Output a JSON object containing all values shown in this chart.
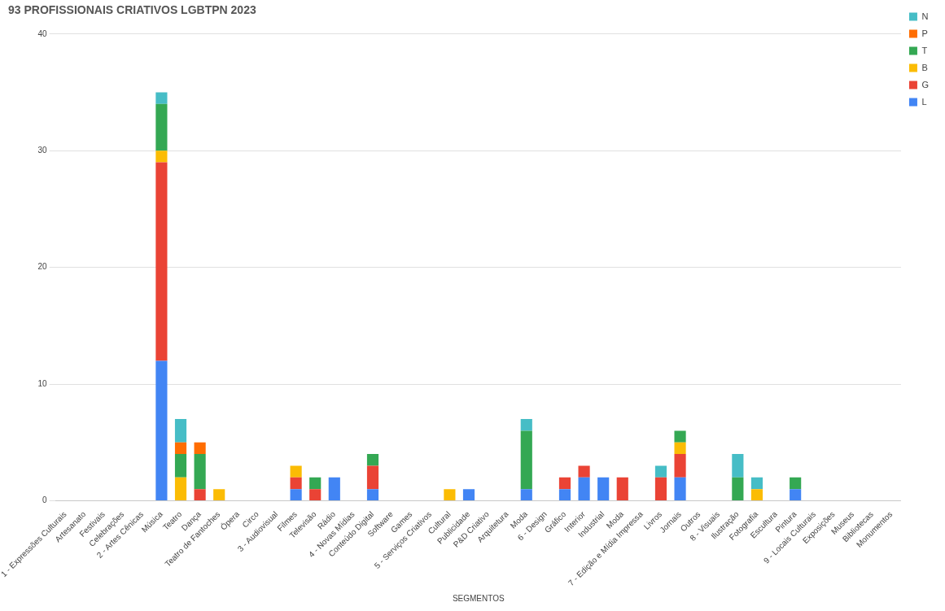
{
  "chart_data": {
    "type": "bar",
    "stacked": true,
    "title": "93 PROFISSIONAIS CRIATIVOS LGBTPN 2023",
    "xlabel": "SEGMENTOS",
    "categories": [
      "1 - Expressões Culturais",
      "Artesanato",
      "Festivais",
      "Celebrações",
      "2 - Artes Cênicas",
      "Música",
      "Teatro",
      "Dança",
      "Teatro de Fantoches",
      "Ópera",
      "Circo",
      "3 - Audiovisual",
      "Filmes",
      "Televisão",
      "Rádio",
      "4 - Novas Mídias",
      "Conteúdo Digital",
      "Software",
      "Games",
      "5 - Serviços Criativos",
      "Cultural",
      "Publicidade",
      "P&D Criativo",
      "Arquitetura",
      "Moda",
      "6 - Design",
      "Gráfico",
      "Interior",
      "Industrial",
      "Moda",
      "7 - Edição e Mídia Impressa",
      "Livros",
      "Jornais",
      "Outros",
      "8 - Visuais",
      "Ilustração",
      "Fotografia",
      "Escultura",
      "Pintura",
      "9 - Locais Culturais",
      "Exposições",
      "Museus",
      "Bibliotecas",
      "Monumentos"
    ],
    "series": [
      {
        "name": "L",
        "color": "#4285f4",
        "values": [
          0,
          0,
          0,
          0,
          0,
          12,
          0,
          0,
          0,
          0,
          0,
          0,
          1,
          0,
          2,
          0,
          1,
          0,
          0,
          0,
          0,
          1,
          0,
          0,
          1,
          0,
          1,
          2,
          2,
          0,
          0,
          0,
          2,
          0,
          0,
          0,
          0,
          0,
          1,
          0,
          0,
          0,
          0,
          0
        ]
      },
      {
        "name": "G",
        "color": "#ea4335",
        "values": [
          0,
          0,
          0,
          0,
          0,
          17,
          0,
          1,
          0,
          0,
          0,
          0,
          1,
          1,
          0,
          0,
          2,
          0,
          0,
          0,
          0,
          0,
          0,
          0,
          0,
          0,
          1,
          1,
          0,
          2,
          0,
          2,
          2,
          0,
          0,
          0,
          0,
          0,
          0,
          0,
          0,
          0,
          0,
          0
        ]
      },
      {
        "name": "B",
        "color": "#fbbc04",
        "values": [
          0,
          0,
          0,
          0,
          0,
          1,
          2,
          0,
          1,
          0,
          0,
          0,
          1,
          0,
          0,
          0,
          0,
          0,
          0,
          0,
          1,
          0,
          0,
          0,
          0,
          0,
          0,
          0,
          0,
          0,
          0,
          0,
          1,
          0,
          0,
          0,
          1,
          0,
          0,
          0,
          0,
          0,
          0,
          0
        ]
      },
      {
        "name": "T",
        "color": "#34a853",
        "values": [
          0,
          0,
          0,
          0,
          0,
          4,
          2,
          3,
          0,
          0,
          0,
          0,
          0,
          1,
          0,
          0,
          1,
          0,
          0,
          0,
          0,
          0,
          0,
          0,
          5,
          0,
          0,
          0,
          0,
          0,
          0,
          0,
          1,
          0,
          0,
          2,
          0,
          0,
          1,
          0,
          0,
          0,
          0,
          0
        ]
      },
      {
        "name": "P",
        "color": "#ff6d01",
        "values": [
          0,
          0,
          0,
          0,
          0,
          0,
          1,
          1,
          0,
          0,
          0,
          0,
          0,
          0,
          0,
          0,
          0,
          0,
          0,
          0,
          0,
          0,
          0,
          0,
          0,
          0,
          0,
          0,
          0,
          0,
          0,
          0,
          0,
          0,
          0,
          0,
          0,
          0,
          0,
          0,
          0,
          0,
          0,
          0
        ]
      },
      {
        "name": "N",
        "color": "#46bdc6",
        "values": [
          0,
          0,
          0,
          0,
          0,
          1,
          2,
          0,
          0,
          0,
          0,
          0,
          0,
          0,
          0,
          0,
          0,
          0,
          0,
          0,
          0,
          0,
          0,
          0,
          1,
          0,
          0,
          0,
          0,
          0,
          0,
          1,
          0,
          0,
          0,
          2,
          1,
          0,
          0,
          0,
          0,
          0,
          0,
          0
        ]
      }
    ],
    "ylim": [
      0,
      40
    ],
    "yticks": [
      0,
      10,
      20,
      30,
      40
    ],
    "grid": "y",
    "legend": "top right"
  }
}
